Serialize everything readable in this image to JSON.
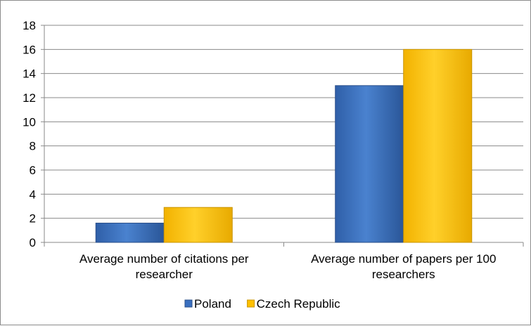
{
  "chart_data": {
    "type": "bar",
    "categories": [
      [
        "Average number of citations per",
        "researcher"
      ],
      [
        "Average number of papers per 100",
        "researchers"
      ]
    ],
    "series": [
      {
        "name": "Poland",
        "values": [
          1.6,
          13
        ],
        "color": "#3a6fbf"
      },
      {
        "name": "Czech Republic",
        "values": [
          2.9,
          16
        ],
        "color": "#ffc000"
      }
    ],
    "ylim": [
      0,
      18
    ],
    "yticks": [
      0,
      2,
      4,
      6,
      8,
      10,
      12,
      14,
      16,
      18
    ],
    "grid": true,
    "legend": "bottom"
  }
}
